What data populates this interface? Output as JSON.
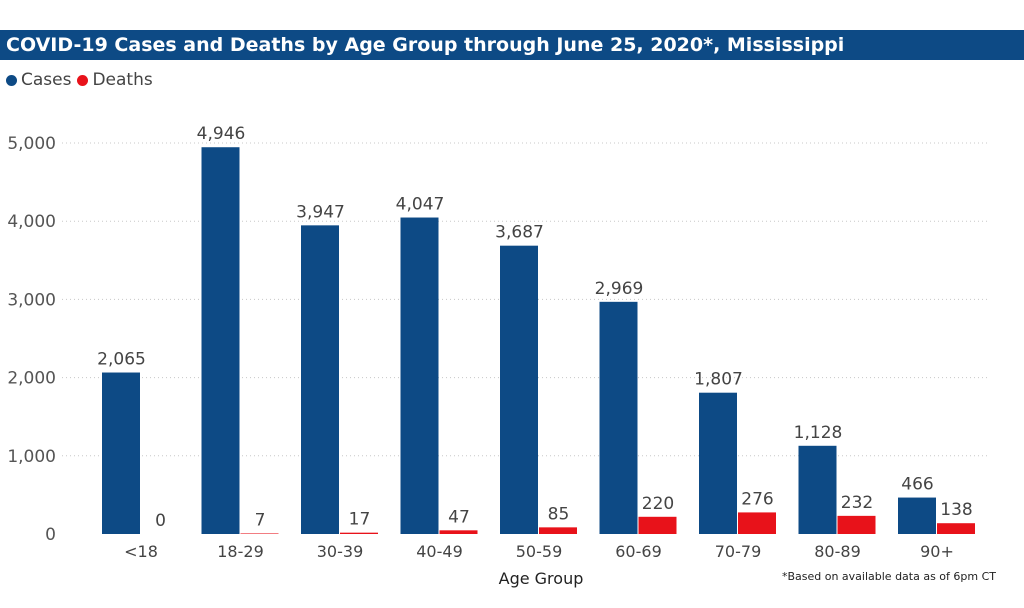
{
  "chart_data": {
    "type": "bar",
    "title": "COVID-19 Cases and Deaths by Age Group through June 25, 2020*, Mississippi",
    "xlabel": "Age Group",
    "ylabel": "",
    "categories": [
      "<18",
      "18-29",
      "30-39",
      "40-49",
      "50-59",
      "60-69",
      "70-79",
      "80-89",
      "90+"
    ],
    "series": [
      {
        "name": "Cases",
        "color": "#0d4a85",
        "values": [
          2065,
          4946,
          3947,
          4047,
          3687,
          2969,
          1807,
          1128,
          466
        ]
      },
      {
        "name": "Deaths",
        "color": "#e8121a",
        "values": [
          0,
          7,
          17,
          47,
          85,
          220,
          276,
          232,
          138
        ]
      }
    ],
    "value_labels": [
      [
        "2,065",
        "4,946",
        "3,947",
        "4,047",
        "3,687",
        "2,969",
        "1,807",
        "1,128",
        "466"
      ],
      [
        "0",
        "7",
        "17",
        "47",
        "85",
        "220",
        "276",
        "232",
        "138"
      ]
    ],
    "ylim": [
      0,
      5000
    ],
    "yticks": [
      0,
      1000,
      2000,
      3000,
      4000,
      5000
    ],
    "ytick_labels": [
      "0",
      "1,000",
      "2,000",
      "3,000",
      "4,000",
      "5,000"
    ],
    "grid": true,
    "legend_position": "top-left"
  },
  "footnote": "*Based on available data as of 6pm CT"
}
